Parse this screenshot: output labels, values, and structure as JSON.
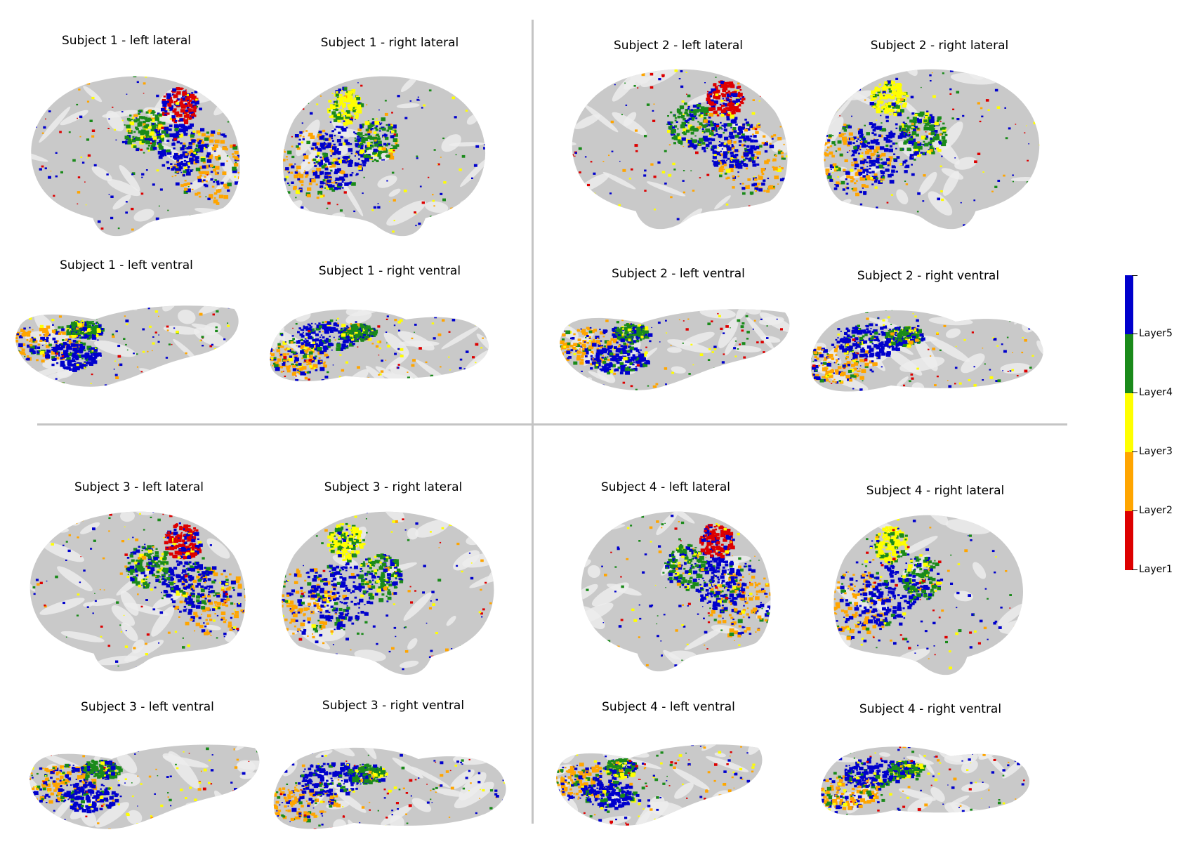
{
  "panels": [
    {
      "subject": "Subject 1",
      "views": [
        {
          "title": "Subject 1 - left lateral",
          "view": "left-lateral"
        },
        {
          "title": "Subject 1 - right lateral",
          "view": "right-lateral"
        },
        {
          "title": "Subject 1 - left ventral",
          "view": "left-ventral"
        },
        {
          "title": "Subject 1 - right ventral",
          "view": "right-ventral"
        }
      ]
    },
    {
      "subject": "Subject 2",
      "views": [
        {
          "title": "Subject 2 - left lateral",
          "view": "left-lateral"
        },
        {
          "title": "Subject 2 - right lateral",
          "view": "right-lateral"
        },
        {
          "title": "Subject 2 - left ventral",
          "view": "left-ventral"
        },
        {
          "title": "Subject 2 - right ventral",
          "view": "right-ventral"
        }
      ]
    },
    {
      "subject": "Subject 3",
      "views": [
        {
          "title": "Subject 3 - left lateral",
          "view": "left-lateral"
        },
        {
          "title": "Subject 3 - right lateral",
          "view": "right-lateral"
        },
        {
          "title": "Subject 3 - left ventral",
          "view": "left-ventral"
        },
        {
          "title": "Subject 3 - right ventral",
          "view": "right-ventral"
        }
      ]
    },
    {
      "subject": "Subject 4",
      "views": [
        {
          "title": "Subject 4 - left lateral",
          "view": "left-lateral"
        },
        {
          "title": "Subject 4 - right lateral",
          "view": "right-lateral"
        },
        {
          "title": "Subject 4 - left ventral",
          "view": "left-ventral"
        },
        {
          "title": "Subject 4 - right ventral",
          "view": "right-ventral"
        }
      ]
    }
  ],
  "colorbar": {
    "labels": [
      "Layer5",
      "Layer4",
      "Layer3",
      "Layer2",
      "Layer1"
    ],
    "colors": [
      "#0000cc",
      "#1a8a1a",
      "#ffff00",
      "#ffa500",
      "#dd0000"
    ]
  },
  "colors": {
    "surface": "#c9c9c9",
    "surface_light": "#ececec",
    "divider": "#c4c4c4"
  }
}
